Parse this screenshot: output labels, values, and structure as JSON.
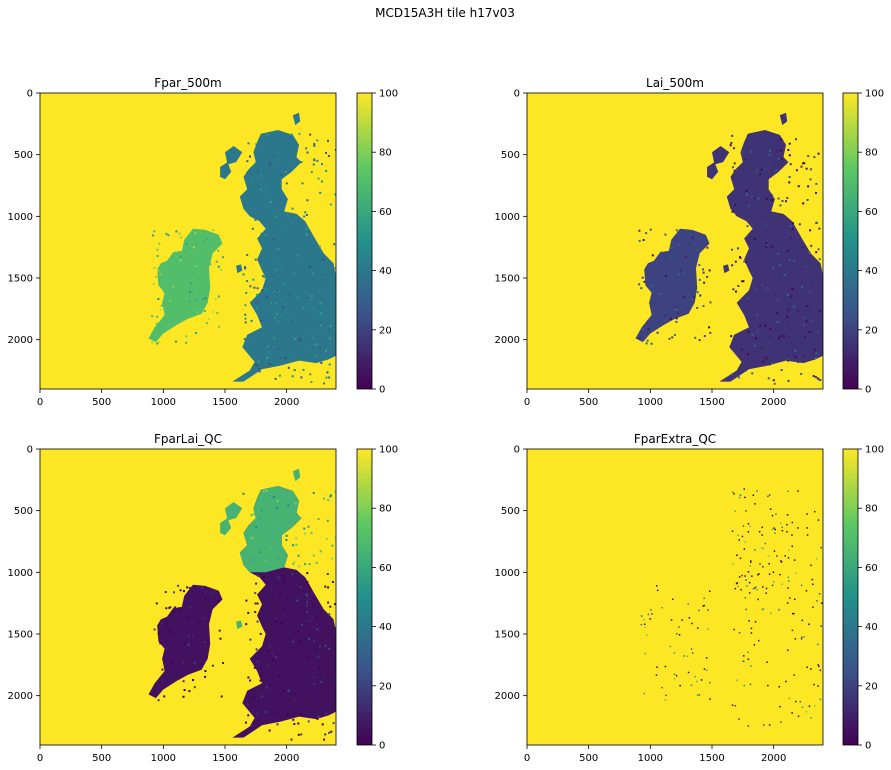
{
  "suptitle": "MCD15A3H tile h17v03",
  "colors": {
    "viridis": [
      "#440154",
      "#3b528b",
      "#21918c",
      "#5ec962",
      "#fde725"
    ],
    "fill": "#fde725",
    "frame": "#000000"
  },
  "chart_data": [
    {
      "type": "heatmap",
      "title": "Fpar_500m",
      "x_ticks": [
        "0",
        "500",
        "1000",
        "1500",
        "2000"
      ],
      "y_ticks": [
        "0",
        "500",
        "1000",
        "1500",
        "2000"
      ],
      "xlim": [
        0,
        2400
      ],
      "ylim": [
        2400,
        0
      ],
      "colorbar": {
        "min": 0,
        "max": 100,
        "ticks": [
          "0",
          "20",
          "40",
          "60",
          "80",
          "100"
        ]
      },
      "background_value": 100,
      "land_fill_values": {
        "great_britain": 40,
        "ireland": 70,
        "islands": 40
      }
    },
    {
      "type": "heatmap",
      "title": "Lai_500m",
      "x_ticks": [
        "0",
        "500",
        "1000",
        "1500",
        "2000"
      ],
      "y_ticks": [
        "0",
        "500",
        "1000",
        "1500",
        "2000"
      ],
      "xlim": [
        0,
        2400
      ],
      "ylim": [
        2400,
        0
      ],
      "colorbar": {
        "min": 0,
        "max": 100,
        "ticks": [
          "0",
          "20",
          "40",
          "60",
          "80",
          "100"
        ]
      },
      "background_value": 100,
      "land_fill_values": {
        "great_britain": 15,
        "ireland": 20,
        "islands": 15
      }
    },
    {
      "type": "heatmap",
      "title": "FparLai_QC",
      "x_ticks": [
        "0",
        "500",
        "1000",
        "1500",
        "2000"
      ],
      "y_ticks": [
        "0",
        "500",
        "1000",
        "1500",
        "2000"
      ],
      "xlim": [
        0,
        2400
      ],
      "ylim": [
        2400,
        0
      ],
      "colorbar": {
        "min": 0,
        "max": 100,
        "ticks": [
          "0",
          "20",
          "40",
          "60",
          "80",
          "100"
        ]
      },
      "background_value": 100,
      "land_fill_values": {
        "great_britain": 5,
        "ireland": 5,
        "islands": 65,
        "scotland": 65
      }
    },
    {
      "type": "heatmap",
      "title": "FparExtra_QC",
      "x_ticks": [
        "0",
        "500",
        "1000",
        "1500",
        "2000"
      ],
      "y_ticks": [
        "0",
        "500",
        "1000",
        "1500",
        "2000"
      ],
      "xlim": [
        0,
        2400
      ],
      "ylim": [
        2400,
        0
      ],
      "colorbar": {
        "min": 0,
        "max": 100,
        "ticks": [
          "0",
          "20",
          "40",
          "60",
          "80",
          "100"
        ]
      },
      "background_value": 100,
      "land_fill_values": {
        "speckle": 30
      }
    }
  ]
}
